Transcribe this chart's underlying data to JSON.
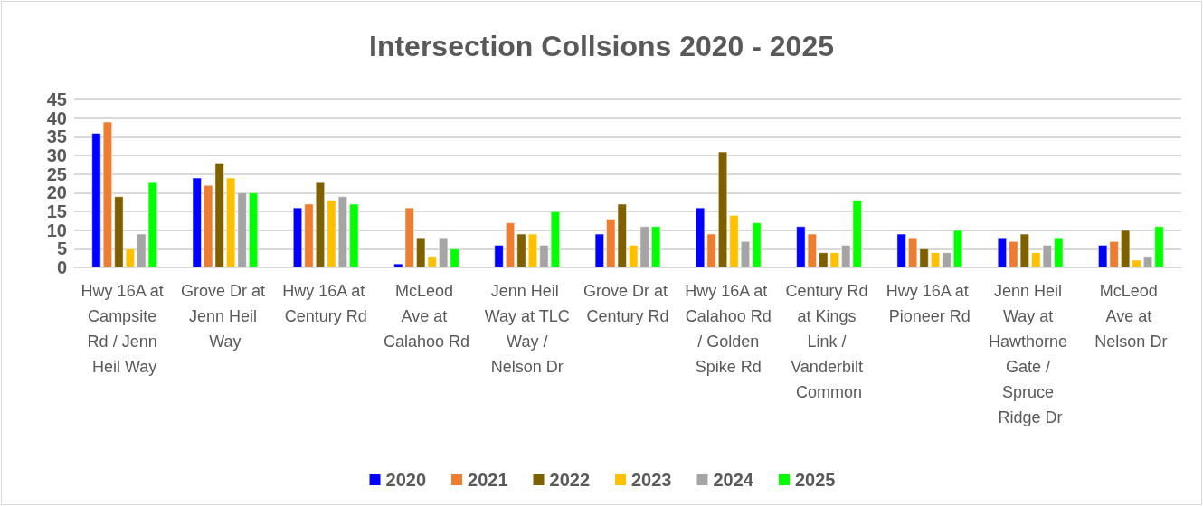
{
  "chart_data": {
    "type": "bar",
    "title": "Intersection Collsions 2020 - 2025",
    "categories": [
      "Hwy 16A at Campsite Rd / Jenn Heil Way",
      "Grove Dr at Jenn Heil Way",
      "Hwy 16A at Century Rd",
      "McLeod Ave at Calahoo Rd",
      "Jenn Heil Way at TLC Way / Nelson Dr",
      "Grove Dr at Century Rd",
      "Hwy 16A at Calahoo Rd / Golden Spike Rd",
      "Century Rd at Kings Link / Vanderbilt Common",
      "Hwy 16A at Pioneer Rd",
      "Jenn Heil Way at Hawthorne Gate / Spruce Ridge Dr",
      "McLeod Ave at Nelson Dr"
    ],
    "series": [
      {
        "name": "2020",
        "color": "#0000ff",
        "values": [
          36,
          24,
          16,
          1,
          6,
          9,
          16,
          11,
          9,
          8,
          6
        ]
      },
      {
        "name": "2021",
        "color": "#ed7d31",
        "values": [
          39,
          22,
          17,
          16,
          12,
          13,
          9,
          9,
          8,
          7,
          7
        ]
      },
      {
        "name": "2022",
        "color": "#7f6000",
        "values": [
          19,
          28,
          23,
          8,
          9,
          17,
          31,
          4,
          5,
          9,
          10
        ]
      },
      {
        "name": "2023",
        "color": "#ffc000",
        "values": [
          5,
          24,
          18,
          3,
          9,
          6,
          14,
          4,
          4,
          4,
          2
        ]
      },
      {
        "name": "2024",
        "color": "#a5a5a5",
        "values": [
          9,
          20,
          19,
          8,
          6,
          11,
          7,
          6,
          4,
          6,
          3
        ]
      },
      {
        "name": "2025",
        "color": "#00ff00",
        "values": [
          23,
          20,
          17,
          5,
          15,
          11,
          12,
          18,
          10,
          8,
          11
        ]
      }
    ],
    "ylim": [
      0,
      45
    ],
    "yticks": [
      0,
      5,
      10,
      15,
      20,
      25,
      30,
      35,
      40,
      45
    ],
    "grid": "y",
    "legend": "bottom"
  }
}
